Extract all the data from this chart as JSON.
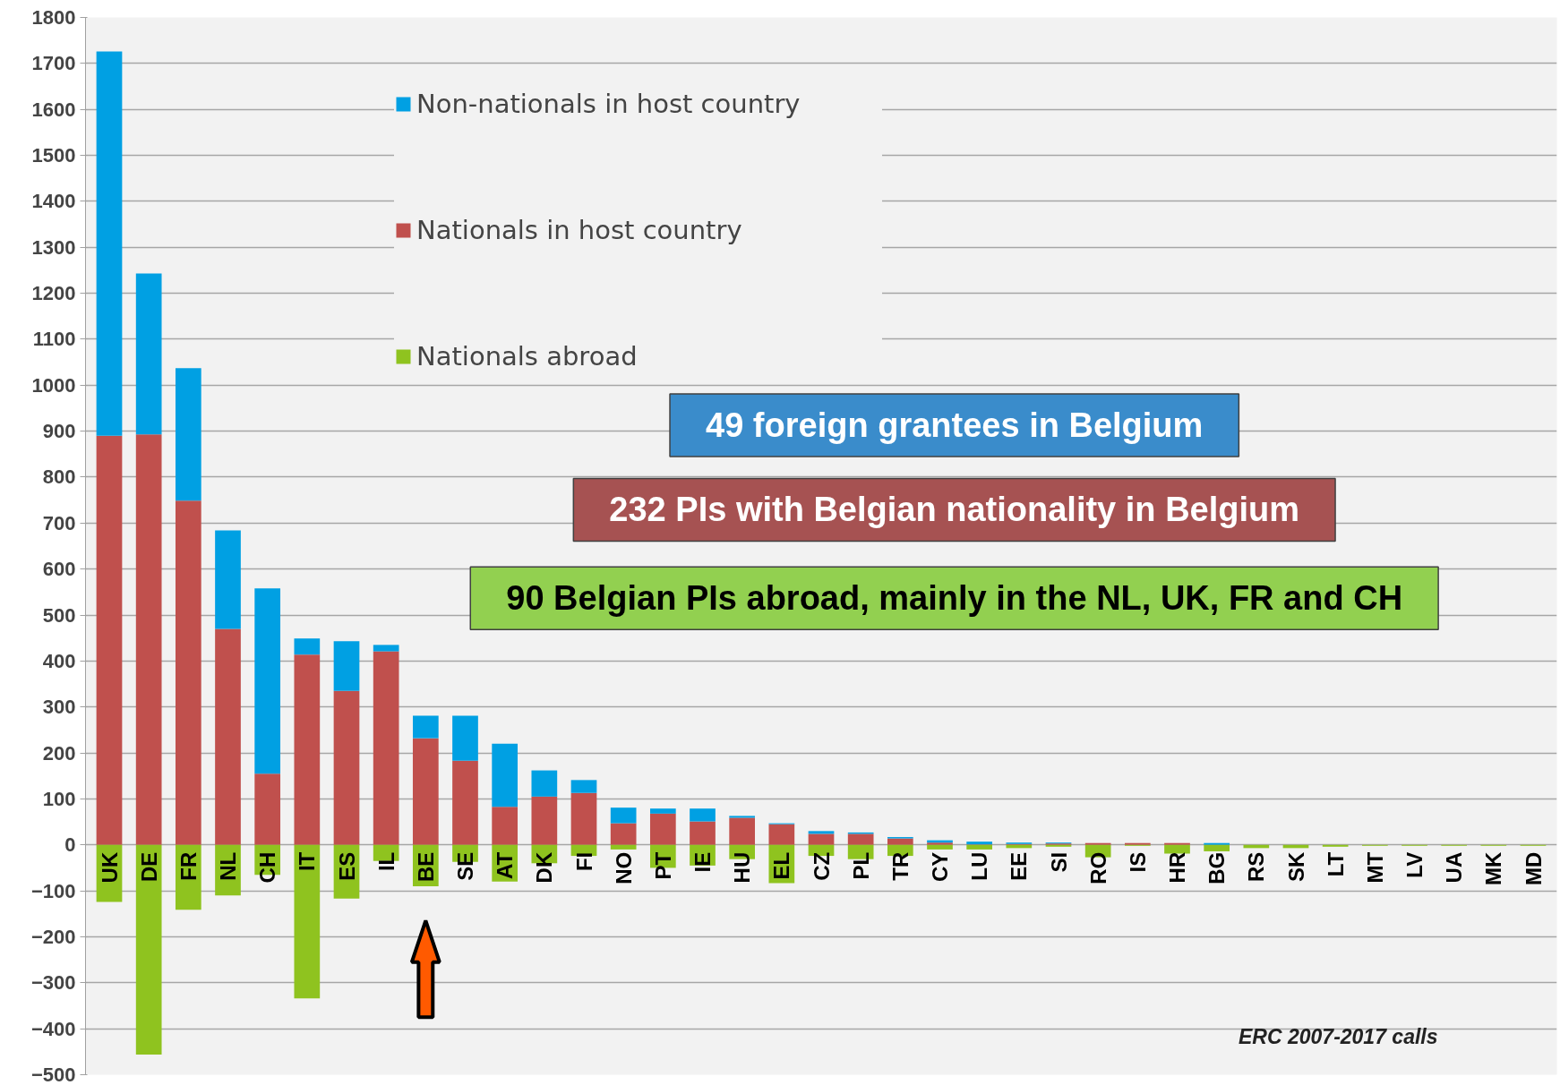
{
  "chart_data": {
    "type": "bar",
    "stacked": true,
    "categories": [
      "UK",
      "DE",
      "FR",
      "NL",
      "CH",
      "IT",
      "ES",
      "IL",
      "BE",
      "SE",
      "AT",
      "DK",
      "FI",
      "NO",
      "PT",
      "IE",
      "HU",
      "EL",
      "CZ",
      "PL",
      "TR",
      "CY",
      "LU",
      "EE",
      "SI",
      "RO",
      "IS",
      "HR",
      "BG",
      "RS",
      "SK",
      "LT",
      "MT",
      "LV",
      "UA",
      "MK",
      "MD"
    ],
    "series": [
      {
        "name": "Nationals in host country",
        "color": "#c0504d",
        "values": [
          890,
          893,
          749,
          470,
          155,
          414,
          335,
          421,
          232,
          183,
          83,
          105,
          113,
          47,
          68,
          51,
          59,
          45,
          24,
          24,
          14,
          5,
          1,
          2,
          3,
          4,
          4,
          4,
          null,
          null,
          null,
          null,
          null,
          null,
          null,
          null,
          null
        ]
      },
      {
        "name": "Non-nationals in host country",
        "color": "#00a0e3",
        "values": [
          836,
          350,
          288,
          214,
          403,
          35,
          108,
          14,
          49,
          98,
          137,
          57,
          28,
          34,
          11,
          28,
          4,
          2,
          6,
          3,
          3,
          5,
          6,
          3,
          2,
          null,
          null,
          null,
          4,
          null,
          null,
          null,
          null,
          null,
          null,
          null,
          null
        ]
      },
      {
        "name": "Nationals abroad",
        "color": "#8fc31f",
        "values": [
          -124,
          -456,
          -141,
          -110,
          -65,
          -334,
          -117,
          -35,
          -90,
          -37,
          -80,
          -40,
          -24,
          -10,
          -50,
          -45,
          -31,
          -83,
          -24,
          -31,
          -24,
          -10,
          -10,
          -7,
          -4,
          -27,
          -2,
          -19,
          -14,
          -7,
          -7,
          -4,
          -2,
          -2,
          -2,
          -2,
          -2
        ]
      }
    ],
    "ylim": [
      -500,
      1800
    ],
    "yticks": [
      -500,
      -400,
      -300,
      -200,
      -100,
      0,
      100,
      200,
      300,
      400,
      500,
      600,
      700,
      800,
      900,
      1000,
      1100,
      1200,
      1300,
      1400,
      1500,
      1600,
      1700,
      1800
    ],
    "grid": "y",
    "legend": "top",
    "annotations": [
      "49 foreign grantees in Belgium",
      "232 PIs with Belgian nationality in Belgium",
      "90 Belgian PIs abroad, mainly in the NL, UK, FR and CH",
      "ERC 2007-2017 calls"
    ]
  }
}
